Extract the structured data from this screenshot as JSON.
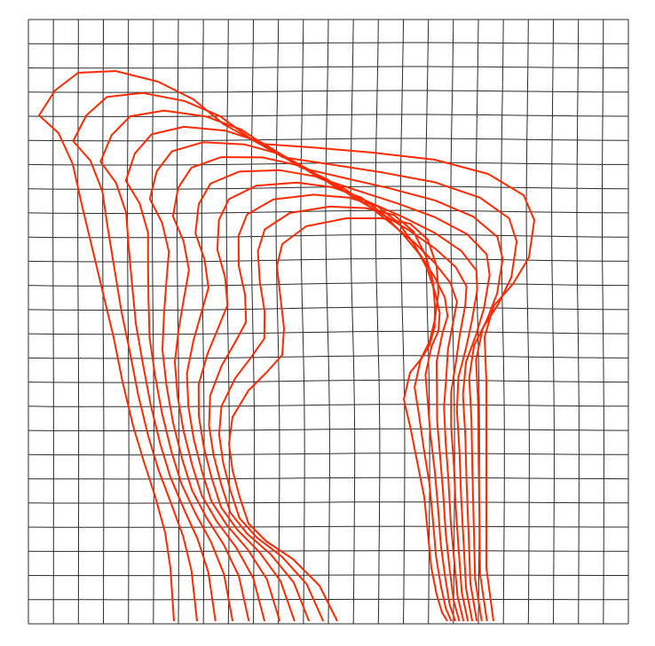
{
  "diagram": {
    "kind": "deformed-grid-with-contours",
    "grid": {
      "columns": 24,
      "rows": 25
    },
    "colors": {
      "background": "#ffffff",
      "grid_line": "#2b2b2b",
      "contour_line": "#ff2a00"
    },
    "contour_count": 11
  }
}
